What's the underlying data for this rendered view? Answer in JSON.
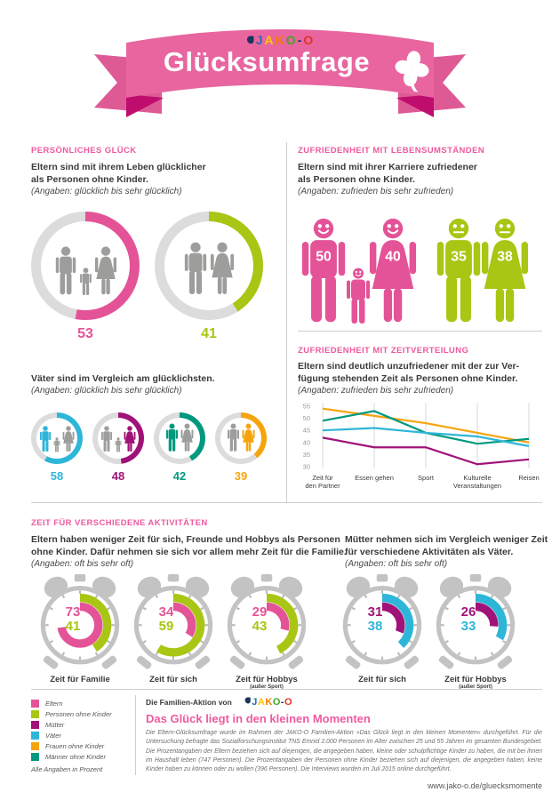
{
  "colors": {
    "pink": "#e45397",
    "green": "#a8c613",
    "magenta": "#a01277",
    "cyan": "#2eb6d9",
    "orange": "#f6a40e",
    "teal": "#00997f",
    "figure_gray": "#9d9d9c",
    "track": "#dcdcdc",
    "heading_pink": "#ee5aa0",
    "banner_band": "#e8659f",
    "banner_fold": "#bf0d6e"
  },
  "banner": {
    "brand": "JAKO-O",
    "brand_letters": [
      {
        "ch": "J",
        "color": "#2b6cb5"
      },
      {
        "ch": "A",
        "color": "#ffc400"
      },
      {
        "ch": "K",
        "color": "#f07d00"
      },
      {
        "ch": "O",
        "color": "#43a62a"
      },
      {
        "ch": "-",
        "color": "#1c355e"
      },
      {
        "ch": "O",
        "color": "#e53223"
      }
    ],
    "title": "Glücksumfrage"
  },
  "sections": {
    "glueck": {
      "heading": "PERSÖNLICHES GLÜCK",
      "text": "Eltern sind mit ihrem Leben glücklicher\nals Personen ohne Kinder.",
      "note": "(Angaben: glücklich bis sehr glücklich)",
      "subtext": "Väter sind im Vergleich am glücklichsten.",
      "subnote": "(Angaben: glücklich bis sehr glücklich)"
    },
    "lebensumstaende": {
      "heading": "ZUFRIEDENHEIT MIT LEBENSUMSTÄNDEN",
      "text": "Eltern sind mit ihrer Karriere zufriedener\nals Personen ohne Kinder.",
      "note": "(Angaben: zufrieden bis sehr zufrieden)"
    },
    "zeitverteilung": {
      "heading": "ZUFRIEDENHEIT MIT ZEITVERTEILUNG",
      "text": "Eltern sind deutlich unzufriedener mit der zur Ver-\nfügung stehenden Zeit als Personen ohne Kinder.",
      "note": "(Angaben: zufrieden bis sehr zufrieden)"
    },
    "aktivitaeten": {
      "heading": "ZEIT FÜR VERSCHIEDENE AKTIVITÄTEN",
      "left_text": "Eltern haben weniger Zeit für sich, Freunde und Hobbys als Personen\nohne Kinder. Dafür nehmen sie sich vor allem mehr Zeit für die Familie.",
      "left_note": "(Angaben: oft bis sehr oft)",
      "right_text": "Mütter nehmen sich im Vergleich weniger Zeit\nfür verschiedene Aktivitäten als Väter.",
      "right_note": "(Angaben: oft bis sehr oft)"
    }
  },
  "chart_data": [
    {
      "id": "glueck_donuts",
      "type": "pie",
      "title": "PERSÖNLICHES GLÜCK",
      "unit": "Prozent",
      "items": [
        {
          "label": "Eltern",
          "value": 53,
          "color": "#e45397",
          "icon": "family-with-child"
        },
        {
          "label": "Personen ohne Kinder",
          "value": 41,
          "color": "#a8c613",
          "icon": "couple"
        }
      ]
    },
    {
      "id": "glueck_gruppen",
      "type": "pie",
      "title": "Väter sind im Vergleich am glücklichsten.",
      "unit": "Prozent",
      "items": [
        {
          "label": "Väter",
          "value": 58,
          "color": "#2eb6d9",
          "icon": "family-father-highlighted"
        },
        {
          "label": "Mütter",
          "value": 48,
          "color": "#a01277",
          "icon": "family-mother-highlighted"
        },
        {
          "label": "Männer ohne Kinder",
          "value": 42,
          "color": "#00997f",
          "icon": "couple-man-highlighted"
        },
        {
          "label": "Frauen ohne Kinder",
          "value": 39,
          "color": "#f6a40e",
          "icon": "couple-woman-highlighted"
        }
      ]
    },
    {
      "id": "karriere_pictogram",
      "type": "pictogram",
      "title": "ZUFRIEDENHEIT MIT LEBENSUMSTÄNDEN",
      "unit": "Prozent",
      "items": [
        {
          "label": "Vater (Eltern)",
          "value": 50,
          "color": "#e45397",
          "mood": "happy"
        },
        {
          "label": "Mutter (Eltern)",
          "value": 40,
          "color": "#e45397",
          "mood": "happy"
        },
        {
          "label": "Mann ohne Kinder",
          "value": 35,
          "color": "#a8c613",
          "mood": "neutral"
        },
        {
          "label": "Frau ohne Kinder",
          "value": 38,
          "color": "#a8c613",
          "mood": "neutral"
        }
      ]
    },
    {
      "id": "zeitverteilung",
      "type": "line",
      "title": "ZUFRIEDENHEIT MIT ZEITVERTEILUNG",
      "categories": [
        "Zeit für\nden Partner",
        "Essen gehen",
        "Sport",
        "Kulturelle\nVeranstaltungen",
        "Reisen"
      ],
      "ylim": [
        30,
        55
      ],
      "yticks": [
        30,
        35,
        40,
        45,
        50,
        55
      ],
      "grid": "vertical",
      "series": [
        {
          "name": "Frauen ohne Kinder",
          "color": "#f6a40e",
          "values": [
            54,
            51,
            48,
            44,
            40
          ]
        },
        {
          "name": "Männer ohne Kinder",
          "color": "#00997f",
          "values": [
            49,
            53,
            44,
            39.5,
            41.5
          ]
        },
        {
          "name": "Väter",
          "color": "#2eb6d9",
          "values": [
            45,
            46,
            44,
            42.5,
            38.5
          ]
        },
        {
          "name": "Mütter",
          "color": "#a01277",
          "values": [
            42,
            38,
            38,
            31,
            33
          ]
        }
      ]
    },
    {
      "id": "aktivitaeten_eltern",
      "type": "clock-arcs",
      "title": "Eltern vs. Personen ohne Kinder",
      "unit": "Prozent",
      "items": [
        {
          "label": "Zeit für Familie",
          "sublabel": "",
          "v1": 73,
          "v2": 41,
          "g1": "Eltern",
          "g2": "Personen ohne Kinder",
          "c1": "#e45397",
          "c2": "#a8c613"
        },
        {
          "label": "Zeit für sich",
          "sublabel": "",
          "v1": 34,
          "v2": 59,
          "g1": "Eltern",
          "g2": "Personen ohne Kinder",
          "c1": "#e45397",
          "c2": "#a8c613"
        },
        {
          "label": "Zeit für Hobbys",
          "sublabel": "(außer Sport)",
          "v1": 29,
          "v2": 43,
          "g1": "Eltern",
          "g2": "Personen ohne Kinder",
          "c1": "#e45397",
          "c2": "#a8c613"
        }
      ]
    },
    {
      "id": "aktivitaeten_muetter",
      "type": "clock-arcs",
      "title": "Mütter vs. Väter",
      "unit": "Prozent",
      "items": [
        {
          "label": "Zeit für sich",
          "sublabel": "",
          "v1": 31,
          "v2": 38,
          "g1": "Mütter",
          "g2": "Väter",
          "c1": "#a01277",
          "c2": "#2eb6d9"
        },
        {
          "label": "Zeit für Hobbys",
          "sublabel": "(außer Sport)",
          "v1": 26,
          "v2": 33,
          "g1": "Mütter",
          "g2": "Väter",
          "c1": "#a01277",
          "c2": "#2eb6d9"
        }
      ]
    }
  ],
  "legend": {
    "items": [
      {
        "label": "Eltern",
        "color": "#e45397"
      },
      {
        "label": "Personen ohne Kinder",
        "color": "#a8c613"
      },
      {
        "label": "Mütter",
        "color": "#a01277"
      },
      {
        "label": "Väter",
        "color": "#2eb6d9"
      },
      {
        "label": "Frauen ohne Kinder",
        "color": "#f6a40e"
      },
      {
        "label": "Männer ohne Kinder",
        "color": "#00997f"
      }
    ],
    "note": "Alle Angaben in Prozent"
  },
  "footer": {
    "prefix": "Die Familien-Aktion von",
    "headline": "Das Glück liegt in den kleinen Momenten",
    "body": "Die Eltern-Glücksumfrage wurde im Rahmen der JAKO-O Familien-Aktion »Das Glück liegt in den kleinen Momenten« durchgeführt. Für die Untersuchung befragte das Sozialforschungsinstitut TNS Emnid 2.000 Personen im Alter zwischen 25 und 55 Jahren im gesamten Bundesgebiet. Die Prozentangaben der Eltern beziehen sich auf diejenigen, die angegeben haben, kleine oder schulpflichtige Kinder zu haben, die mit bei ihnen im Haushalt leben (747 Personen). Die Prozentangaben der Personen ohne Kinder beziehen sich auf diejenigen, die angegeben haben, keine Kinder haben zu können oder zu wollen (396 Personen). Die Interviews wurden im Juli 2015 online durchgeführt.",
    "url": "www.jako-o.de/gluecksmomente"
  }
}
